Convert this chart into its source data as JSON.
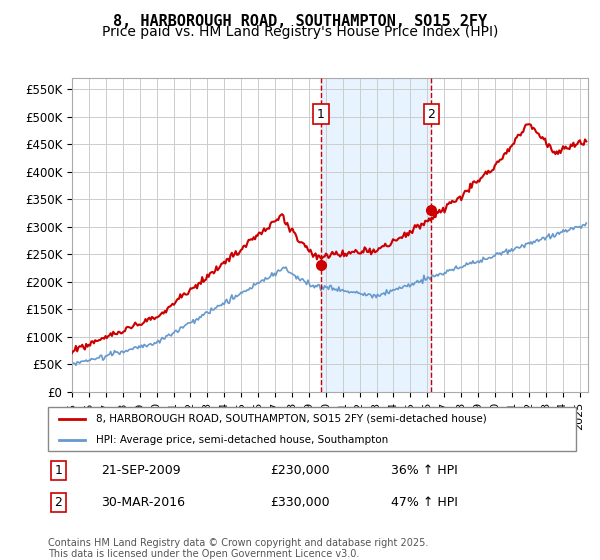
{
  "title": "8, HARBOROUGH ROAD, SOUTHAMPTON, SO15 2FY",
  "subtitle": "Price paid vs. HM Land Registry's House Price Index (HPI)",
  "title_fontsize": 11,
  "subtitle_fontsize": 10,
  "background_color": "#ffffff",
  "plot_bg_color": "#ffffff",
  "grid_color": "#cccccc",
  "ylim": [
    0,
    570000
  ],
  "yticks": [
    0,
    50000,
    100000,
    150000,
    200000,
    250000,
    300000,
    350000,
    400000,
    450000,
    500000,
    550000
  ],
  "ytick_labels": [
    "£0",
    "£50K",
    "£100K",
    "£150K",
    "£200K",
    "£250K",
    "£300K",
    "£350K",
    "£400K",
    "£450K",
    "£500K",
    "£550K"
  ],
  "xlim_start": 1995.0,
  "xlim_end": 2025.5,
  "red_color": "#cc0000",
  "blue_color": "#6699cc",
  "shade_color": "#ddeeff",
  "sale1_year": 2009.72,
  "sale1_price": 230000,
  "sale2_year": 2016.24,
  "sale2_price": 330000,
  "footnote": "Contains HM Land Registry data © Crown copyright and database right 2025.\nThis data is licensed under the Open Government Licence v3.0.",
  "legend_line1": "8, HARBOROUGH ROAD, SOUTHAMPTON, SO15 2FY (semi-detached house)",
  "legend_line2": "HPI: Average price, semi-detached house, Southampton"
}
